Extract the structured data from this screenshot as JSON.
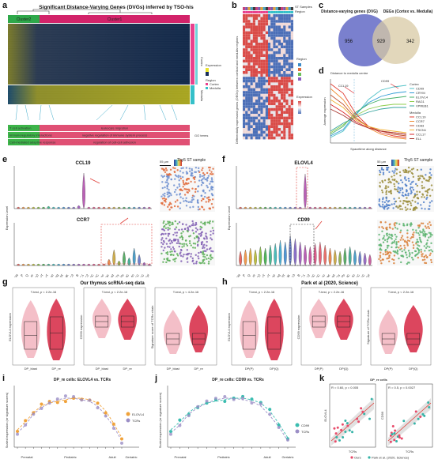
{
  "panel_labels": [
    "a",
    "b",
    "c",
    "d",
    "e",
    "f",
    "g",
    "h",
    "i",
    "j",
    "k"
  ],
  "panel_a": {
    "title": "Significant Distance-Varying Genes (DVGs) inferred by TSO-his",
    "cluster_labels": [
      "Cluster2",
      "Cluster1"
    ],
    "side_labels": [
      "Cortex",
      "Medulla"
    ],
    "legend_title": "Region",
    "legend_items": [
      "Cortex",
      "Medulla"
    ],
    "legend_expr": "Expression",
    "go_terms_left": [
      "T cell activation",
      "Immunoregulatory interactions",
      "Cell-mediated adaptive response"
    ],
    "go_terms_right": [
      "leukocyte migration",
      "negative regulation of immune system process",
      "regulation of cell-cell adhesion"
    ],
    "go_terms_label": "GO terms",
    "colors": {
      "cluster1": "#d2236a",
      "cluster2": "#2ea84a",
      "cortex": "#e9418d",
      "medulla": "#35c0c9",
      "go_left": "#3db449",
      "go_right": "#e05074"
    }
  },
  "panel_b": {
    "ylabel": "Differentially expressed genes (DEGs) between cortical and medullar regions",
    "top_labels": [
      "ST Samples",
      "Region"
    ],
    "legend_expr": "Expression",
    "legend_region": "Region"
  },
  "panel_c": {
    "left_title": "Distance-varying genes (DVG)",
    "right_title": "DEGs (Cortex vs. Medulla)",
    "left_only": "956",
    "overlap": "929",
    "right_only": "342",
    "colors": {
      "left": "#6c72c9",
      "right": "#d8c9a4"
    }
  },
  "panel_d": {
    "title": "Distance to medulla centre",
    "xlabel": "Spacetime along distance",
    "ylabel": "Average expression",
    "annotations": [
      "CCL19",
      "CD99"
    ],
    "legend_cortex": "Cortex",
    "legend_medulla": "Medulla",
    "cortex_genes": [
      "CD99",
      "CRYM",
      "ELOVL4",
      "RAG1",
      "VPREB1"
    ],
    "medulla_genes": [
      "CCL19",
      "CCR7",
      "CD83",
      "FSCN1",
      "CCL17",
      "ELL"
    ],
    "cortex_colors": [
      "#4fc1c7",
      "#2f9bd5",
      "#46b16a",
      "#8fcd4e",
      "#35a39d"
    ],
    "medulla_colors": [
      "#e03c31",
      "#ef8a2f",
      "#c2512e",
      "#f2b134",
      "#d7262c",
      "#a8342d"
    ]
  },
  "panel_e": {
    "genes": [
      "CCL19",
      "CCR7"
    ],
    "ylabel": "Expression Level",
    "scale": "55 µm",
    "sample_title": "Thy5 ST sample",
    "cell_types": [
      "DN",
      "DP_P",
      "DP_Q",
      "DP_re",
      "abT(entry)",
      "CD8+T",
      "CD4+T",
      "CD8αα",
      "Treg",
      "γδT",
      "NK",
      "ILC3",
      "B",
      "DC1",
      "DC2",
      "aDC",
      "pDC",
      "Mono",
      "Mac",
      "Mast",
      "Ery",
      "Fb",
      "VSMC",
      "Endo",
      "cTEC",
      "mTEC",
      "Epi"
    ]
  },
  "panel_f": {
    "genes": [
      "ELOVL4",
      "CD99"
    ],
    "ylabel": "Expression Level",
    "scale": "55 µm",
    "sample_title": "Thy5 ST sample"
  },
  "panel_g": {
    "title": "Our thymus scRNA-seq data",
    "plots": [
      {
        "stat": "T-test, p < 2.2e-16",
        "ylabel": "ELOVL4 expression",
        "groups": [
          "DP_blast",
          "DP_re"
        ]
      },
      {
        "stat": "T-test, p < 2.2e-16",
        "ylabel": "CD99 expression",
        "groups": [
          "DP_blast",
          "DP_re"
        ]
      },
      {
        "stat": "T-test, p < 4.2e-16",
        "ylabel": "Signature score of TCRα chain",
        "groups": [
          "DP_blast",
          "DP_re"
        ]
      }
    ]
  },
  "panel_h": {
    "title": "Park et al (2020, Science)",
    "plots": [
      {
        "stat": "T-test, p < 2.2e-16",
        "ylabel": "ELOVL4 expression",
        "groups": [
          "DP(P)",
          "DP(Q)"
        ]
      },
      {
        "stat": "T-test, p < 2.2e-16",
        "ylabel": "CD99 expression",
        "groups": [
          "DP(P)",
          "DP(Q)"
        ]
      },
      {
        "stat": "T-test, p < 2.2e-16",
        "ylabel": "Signature of TCRα chain",
        "groups": [
          "DP(P)",
          "DP(Q)"
        ]
      }
    ]
  },
  "panel_i": {
    "title": "DP_re cells: ELOVL4 vs. TCRs",
    "ylabel": "Scaled expression (or signature scores)",
    "stages": [
      "Prenatal",
      "Pediatric",
      "Adult",
      "Geriatric"
    ],
    "legend": [
      "ELOVL4",
      "TCRs"
    ],
    "colors": {
      "gene": "#f0a23a",
      "tcr": "#9b8ec6"
    }
  },
  "panel_j": {
    "title": "DP_re cells: CD99 vs. TCRs",
    "ylabel": "Scaled expression (or signature scores)",
    "stages": [
      "Prenatal",
      "Pediatric",
      "Adult",
      "Geriatric"
    ],
    "legend": [
      "CD99",
      "TCRs"
    ],
    "colors": {
      "gene": "#3bbdb0",
      "tcr": "#9b8ec6"
    }
  },
  "panel_k": {
    "title": "DP_re cells",
    "stats": [
      "R = 0.60, p = 0.005",
      "R = 0.5, p = 0.0027"
    ],
    "xlabel": "TCRs",
    "ylabels": [
      "ELOVL4",
      "CD99"
    ],
    "legend": [
      "Ours",
      "Park et al. (2020, Science)"
    ]
  }
}
